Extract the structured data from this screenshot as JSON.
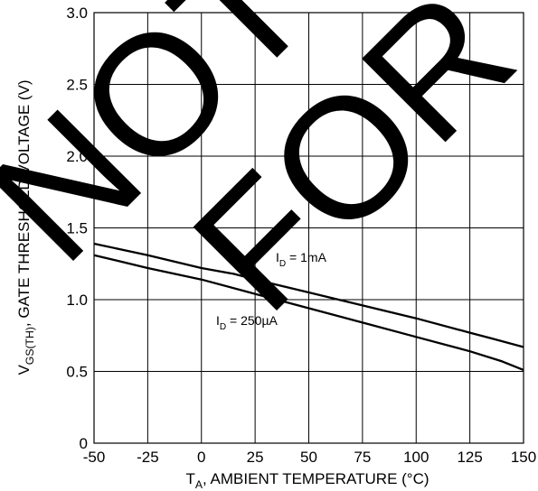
{
  "chart_data": {
    "type": "line",
    "xlabel": {
      "main": "T",
      "sub": "A",
      "rest": ", AMBIENT TEMPERATURE (°C)"
    },
    "ylabel": {
      "main": "V",
      "sub": "GS(TH)",
      "rest": ", GATE THRESHOLD VOLTAGE (V)"
    },
    "xlim": [
      -50,
      150
    ],
    "ylim": [
      0,
      3.0
    ],
    "xticks": [
      -50,
      -25,
      0,
      25,
      50,
      75,
      100,
      125,
      150
    ],
    "xtick_labels": [
      "-50",
      "-25",
      "0",
      "25",
      "50",
      "75",
      "100",
      "125",
      "150"
    ],
    "yticks": [
      0,
      0.5,
      1.0,
      1.5,
      2.0,
      2.5,
      3.0
    ],
    "ytick_labels": [
      "0",
      "0.5",
      "1.0",
      "1.5",
      "2.0",
      "2.5",
      "3.0"
    ],
    "grid": true,
    "series": [
      {
        "label_main": "I",
        "label_sub": "D",
        "label_rest": " = 1mA",
        "x": [
          -50,
          -25,
          0,
          15,
          25,
          50,
          75,
          100,
          125,
          135,
          150
        ],
        "y": [
          1.39,
          1.31,
          1.22,
          1.18,
          1.14,
          1.05,
          0.96,
          0.87,
          0.77,
          0.73,
          0.67
        ]
      },
      {
        "label_main": "I",
        "label_sub": "D",
        "label_rest": " = 250µA",
        "x": [
          -50,
          -25,
          0,
          25,
          50,
          75,
          100,
          125,
          140,
          150
        ],
        "y": [
          1.31,
          1.22,
          1.14,
          1.04,
          0.94,
          0.84,
          0.74,
          0.64,
          0.57,
          0.51
        ]
      }
    ],
    "watermark": [
      "NOT",
      "FOR"
    ]
  }
}
